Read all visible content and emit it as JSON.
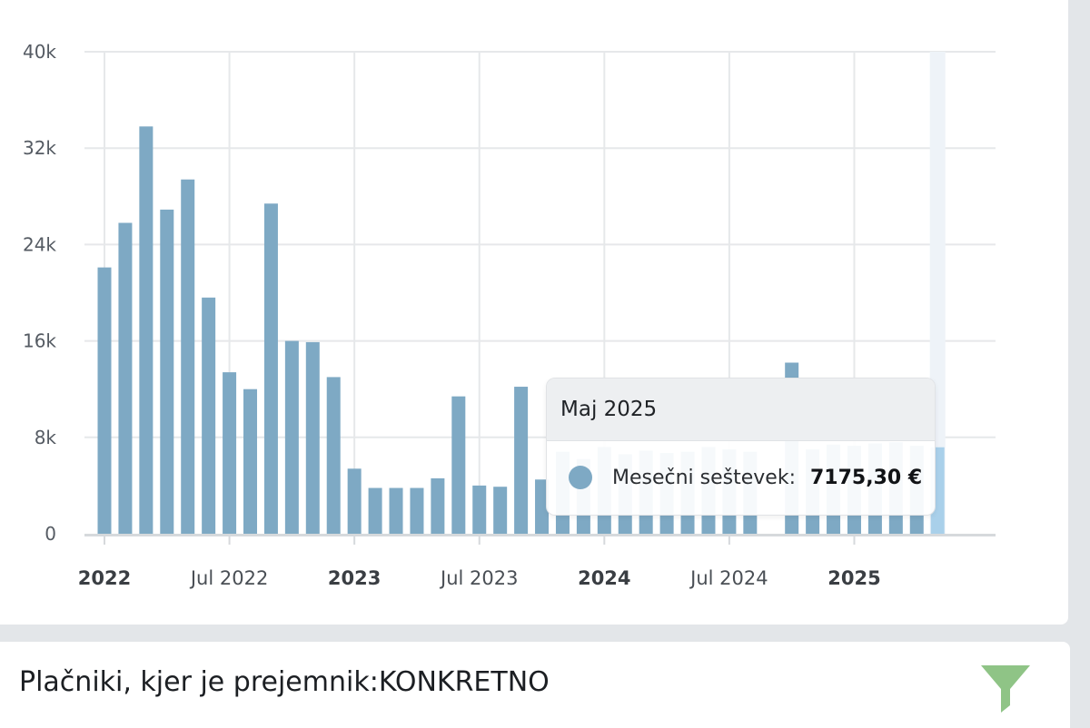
{
  "chart_data": {
    "type": "bar",
    "title": "",
    "xlabel": "",
    "ylabel": "",
    "ylim": [
      0,
      40000
    ],
    "y_ticks": [
      "0",
      "8k",
      "16k",
      "24k",
      "32k",
      "40k"
    ],
    "y_tick_values": [
      0,
      8000,
      16000,
      24000,
      32000,
      40000
    ],
    "x_ticks": [
      {
        "label": "2022",
        "month": "2022-01",
        "major": true
      },
      {
        "label": "Jul 2022",
        "month": "2022-07",
        "major": false
      },
      {
        "label": "2023",
        "month": "2023-01",
        "major": true
      },
      {
        "label": "Jul 2023",
        "month": "2023-07",
        "major": false
      },
      {
        "label": "2024",
        "month": "2024-01",
        "major": true
      },
      {
        "label": "Jul 2024",
        "month": "2024-07",
        "major": false
      },
      {
        "label": "2025",
        "month": "2025-01",
        "major": true
      }
    ],
    "grid": true,
    "colors": {
      "bar": "#7ea9c4",
      "bar_highlight": "#a9d0ea",
      "grid": "#e6e8ea",
      "axis": "#d6d9dc"
    },
    "highlighted_category": "2025-05",
    "categories": [
      "2022-01",
      "2022-02",
      "2022-03",
      "2022-04",
      "2022-05",
      "2022-06",
      "2022-07",
      "2022-08",
      "2022-09",
      "2022-10",
      "2022-11",
      "2022-12",
      "2023-01",
      "2023-02",
      "2023-03",
      "2023-04",
      "2023-05",
      "2023-06",
      "2023-07",
      "2023-08",
      "2023-09",
      "2023-10",
      "2023-11",
      "2023-12",
      "2024-01",
      "2024-02",
      "2024-03",
      "2024-04",
      "2024-05",
      "2024-06",
      "2024-07",
      "2024-08",
      "2024-09",
      "2024-10",
      "2024-11",
      "2024-12",
      "2025-01",
      "2025-02",
      "2025-03",
      "2025-04",
      "2025-05",
      "2025-06"
    ],
    "series": [
      {
        "name": "Mesečni seštevek",
        "values": [
          22100,
          25800,
          33800,
          26900,
          29400,
          19600,
          13400,
          12000,
          27400,
          16000,
          15900,
          13000,
          5400,
          3800,
          3800,
          3800,
          4600,
          11400,
          4000,
          3900,
          12200,
          4500,
          6800,
          6200,
          7200,
          6600,
          6900,
          6700,
          6800,
          7200,
          7000,
          6800,
          0,
          14200,
          7000,
          7400,
          7300,
          7500,
          7600,
          7300,
          7175.3,
          0
        ]
      }
    ]
  },
  "tooltip": {
    "title": "Maj 2025",
    "series_label": "Mesečni seštevek:",
    "value": "7175,30 €"
  },
  "filter": {
    "prefix": "Plačniki, kjer je prejemnik:",
    "value": "KONKRETNO",
    "icon": "filter-icon",
    "icon_color": "#8fc486"
  }
}
